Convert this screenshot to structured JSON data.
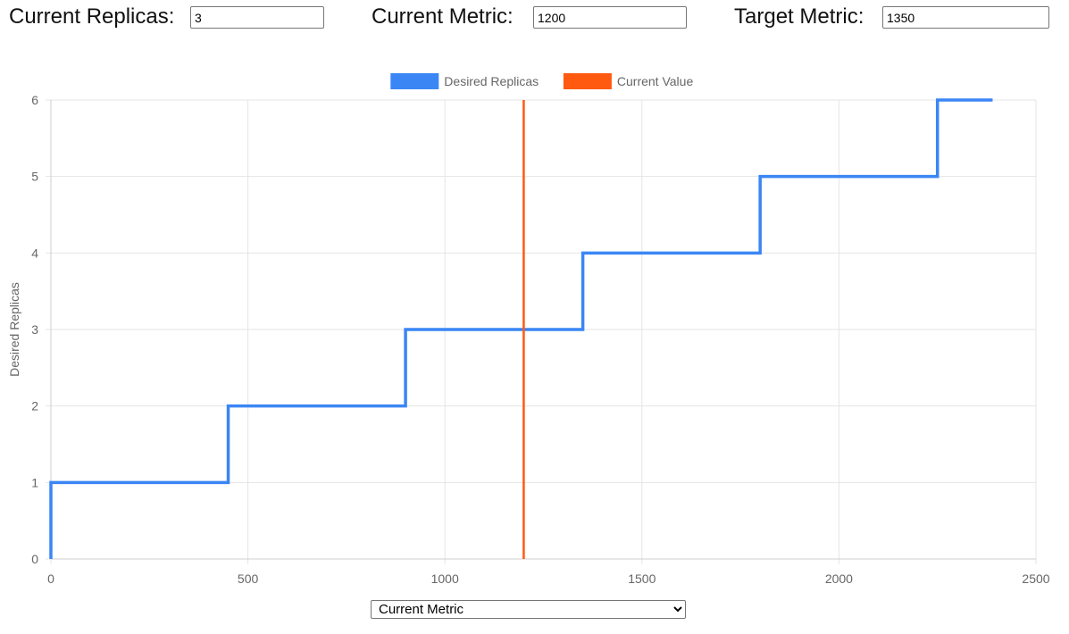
{
  "controls": {
    "current_replicas": {
      "label": "Current Replicas:",
      "value": "3"
    },
    "current_metric": {
      "label": "Current Metric:",
      "value": "1200"
    },
    "target_metric": {
      "label": "Target Metric:",
      "value": "1350"
    }
  },
  "x_axis_select": {
    "selected": "Current Metric",
    "options": [
      "Current Metric"
    ]
  },
  "colors": {
    "desired_replicas": "#3b86f5",
    "current_value": "#ff5a10",
    "grid": "#e5e5e5",
    "tick_text": "#666666"
  },
  "chart_data": {
    "type": "line",
    "title": "",
    "xlabel": "",
    "ylabel": "Desired Replicas",
    "xlim": [
      0,
      2500
    ],
    "ylim": [
      0,
      6
    ],
    "x_ticks": [
      "0",
      "500",
      "1000",
      "1500",
      "2000",
      "2500"
    ],
    "y_ticks": [
      "0",
      "1",
      "2",
      "3",
      "4",
      "5",
      "6"
    ],
    "grid": true,
    "legend_position": "top",
    "series": [
      {
        "name": "Desired Replicas",
        "step": true,
        "x": [
          0,
          0,
          450,
          450,
          900,
          900,
          1350,
          1350,
          1800,
          1800,
          2250,
          2250,
          2390
        ],
        "y": [
          0,
          1,
          1,
          2,
          2,
          3,
          3,
          4,
          4,
          5,
          5,
          6,
          6
        ]
      },
      {
        "name": "Current Value",
        "x": [
          1200,
          1200
        ],
        "y": [
          0,
          6
        ]
      }
    ]
  }
}
